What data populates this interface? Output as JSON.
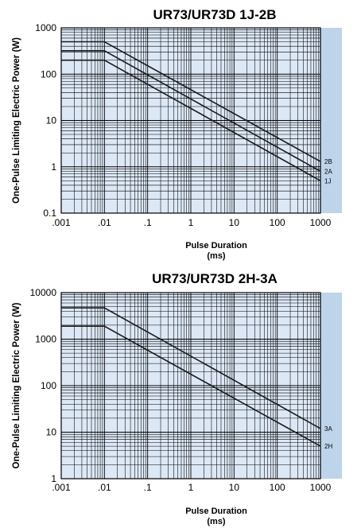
{
  "chart_data": [
    {
      "type": "line",
      "title": "UR73/UR73D 1J-2B",
      "xlabel": "Pulse Duration",
      "xlabel_unit": "(ms)",
      "ylabel": "One-Pulse Limiting Electric Power (W)",
      "x_scale": "log",
      "y_scale": "log",
      "xlim": [
        0.001,
        1000
      ],
      "ylim": [
        0.1,
        1000
      ],
      "x_ticks": [
        ".001",
        ".01",
        ".1",
        "1",
        "10",
        "100",
        "1000"
      ],
      "y_ticks": [
        "0.1",
        "1",
        "10",
        "100",
        "1000"
      ],
      "grid": true,
      "plot_bg": "#dce8f5",
      "shaded_bg": "#bdd4ea",
      "series": [
        {
          "name": "2B",
          "x": [
            0.001,
            0.01,
            1000
          ],
          "y": [
            500,
            500,
            1.3
          ]
        },
        {
          "name": "2A",
          "x": [
            0.001,
            0.01,
            1000
          ],
          "y": [
            320,
            320,
            0.8
          ]
        },
        {
          "name": "1J",
          "x": [
            0.001,
            0.01,
            1000
          ],
          "y": [
            200,
            200,
            0.5
          ]
        }
      ]
    },
    {
      "type": "line",
      "title": "UR73/UR73D 2H-3A",
      "xlabel": "Pulse Duration",
      "xlabel_unit": "(ms)",
      "ylabel": "One-Pulse Limiting Electric Power (W)",
      "x_scale": "log",
      "y_scale": "log",
      "xlim": [
        0.001,
        1000
      ],
      "ylim": [
        1,
        10000
      ],
      "x_ticks": [
        ".001",
        ".01",
        ".1",
        "1",
        "10",
        "100",
        "1000"
      ],
      "y_ticks": [
        "1",
        "10",
        "100",
        "1000",
        "10000"
      ],
      "grid": true,
      "plot_bg": "#dce8f5",
      "shaded_bg": "#bdd4ea",
      "series": [
        {
          "name": "3A",
          "x": [
            0.001,
            0.01,
            1000
          ],
          "y": [
            4700,
            4700,
            12
          ]
        },
        {
          "name": "2H",
          "x": [
            0.001,
            0.01,
            1000
          ],
          "y": [
            1900,
            1900,
            5
          ]
        }
      ]
    }
  ]
}
